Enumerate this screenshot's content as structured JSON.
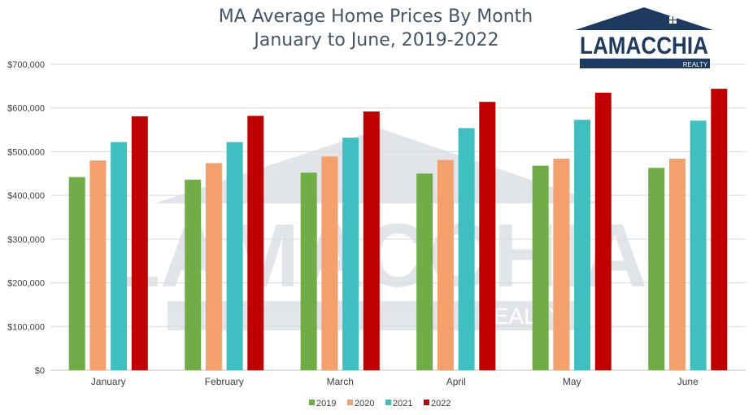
{
  "chart_data": {
    "type": "bar",
    "title_lines": [
      "MA Average Home Prices By Month",
      "January to June, 2019-2022"
    ],
    "categories": [
      "January",
      "February",
      "March",
      "April",
      "May",
      "June"
    ],
    "series": [
      {
        "name": "2019",
        "color": "#70ad47",
        "values": [
          442000,
          436000,
          452000,
          450000,
          468000,
          463000
        ]
      },
      {
        "name": "2020",
        "color": "#f4a06c",
        "values": [
          480000,
          474000,
          489000,
          481000,
          484000,
          484000
        ]
      },
      {
        "name": "2021",
        "color": "#3fbfbf",
        "values": [
          522000,
          522000,
          532000,
          554000,
          573000,
          571000
        ]
      },
      {
        "name": "2022",
        "color": "#c00000",
        "values": [
          581000,
          582000,
          592000,
          614000,
          635000,
          644000
        ]
      }
    ],
    "ylim": [
      0,
      700000
    ],
    "yticks": [
      0,
      100000,
      200000,
      300000,
      400000,
      500000,
      600000,
      700000
    ],
    "ytick_labels": [
      "$0",
      "$100,000",
      "$200,000",
      "$300,000",
      "$400,000",
      "$500,000",
      "$600,000",
      "$700,000"
    ],
    "grid": true,
    "legend_position": "bottom-center"
  },
  "logo": {
    "text": "LAMACCHIA",
    "subtext": "REALTY",
    "color": "#1f3a5f"
  }
}
